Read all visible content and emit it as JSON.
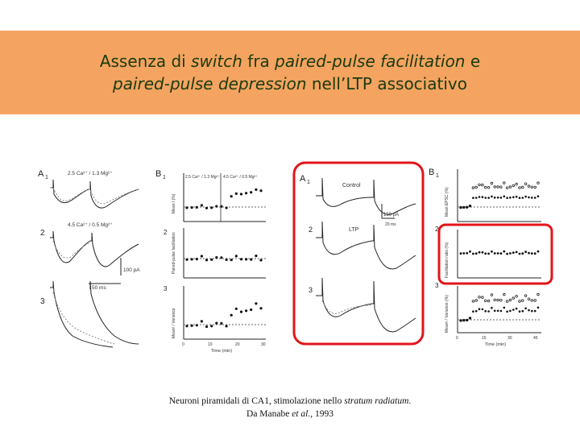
{
  "slide": {
    "title": {
      "line1": [
        {
          "text": "Assenza di ",
          "italic": false
        },
        {
          "text": "switch",
          "italic": true
        },
        {
          "text": " fra ",
          "italic": false
        },
        {
          "text": "paired-pulse facilitation",
          "italic": true
        },
        {
          "text": " e",
          "italic": false
        }
      ],
      "line2": [
        {
          "text": "paired-pulse depression",
          "italic": true
        },
        {
          "text": " nell’LTP associativo",
          "italic": false
        }
      ]
    },
    "caption": {
      "line1": [
        {
          "text": "Neuroni piramidali di CA1, stimolazione nello ",
          "italic": false
        },
        {
          "text": "stratum radiatum",
          "italic": true
        },
        {
          "text": ".",
          "italic": false
        }
      ],
      "line2": [
        {
          "text": "Da Manabe ",
          "italic": false
        },
        {
          "text": "et al.",
          "italic": true
        },
        {
          "text": ", 1993",
          "italic": false
        }
      ]
    }
  },
  "figure": {
    "left_panel": {
      "a1_label": "A",
      "a1_sub": "1",
      "b1_label": "B",
      "b1_sub": "1",
      "trace_labels": [
        "2.5 Ca²⁺ / 1.3 Mg²⁺",
        "4.5 Ca²⁺ / 0.5 Mg²⁺"
      ],
      "row_numbers": [
        "2",
        "3"
      ],
      "scale_amp": "100 pA",
      "scale_time": "50 ms",
      "b_legend": [
        "2.5 Ca²⁺ / 1.3 Mg²⁺",
        "4.5 Ca²⁺ / 0.5 Mg²⁺"
      ],
      "b_ylabels": [
        "Mean I (%)",
        "Paired-pulse facilitation",
        "Mean² / Variance"
      ],
      "b_xticks": [
        "0",
        "10",
        "20",
        "30"
      ],
      "b_xlabel": "Time (min)",
      "b_row_numbers": [
        "2",
        "3"
      ]
    },
    "middle_panel": {
      "a1_label": "A",
      "a1_sub": "1",
      "trace_labels": [
        "Control",
        "LTP"
      ],
      "row_numbers": [
        "2",
        "3"
      ],
      "scale_amp": "150 pA",
      "scale_time": "20 ms"
    },
    "right_panel": {
      "b1_label": "B",
      "b1_sub": "1",
      "row_numbers": [
        "2",
        "3"
      ],
      "ylabels": [
        "Mean EPSC (%)",
        "Facilitation ratio (%)",
        "Mean² / Variance (%)"
      ],
      "xticks": [
        "0",
        "15",
        "30",
        "45"
      ],
      "xlabel": "Time (min)"
    },
    "highlight_color": "#e0161b"
  }
}
